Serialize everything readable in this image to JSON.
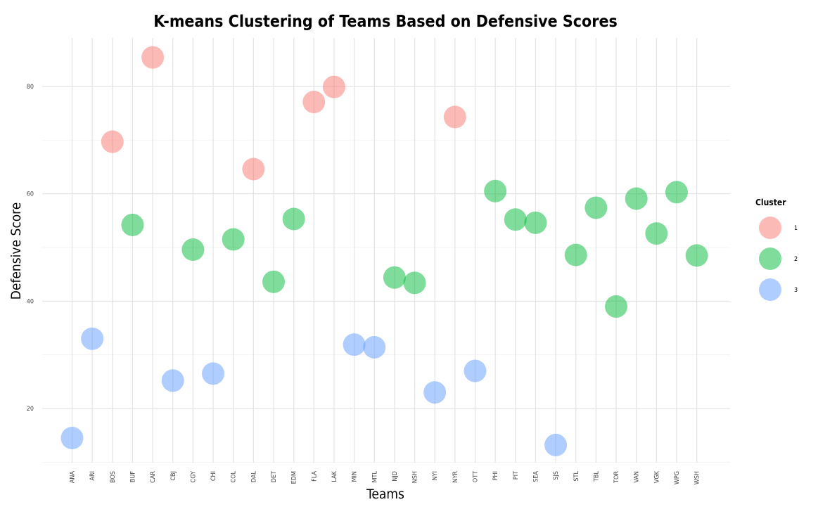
{
  "chart_data": {
    "type": "scatter",
    "title": "K-means Clustering of Teams Based on Defensive Scores",
    "xlabel": "Teams",
    "ylabel": "Defensive Score",
    "categories": [
      "ANA",
      "ARI",
      "BOS",
      "BUF",
      "CAR",
      "CBJ",
      "CGY",
      "CHI",
      "COL",
      "DAL",
      "DET",
      "EDM",
      "FLA",
      "LAK",
      "MIN",
      "MTL",
      "NJD",
      "NSH",
      "NYI",
      "NYR",
      "OTT",
      "PHI",
      "PIT",
      "SEA",
      "SJS",
      "STL",
      "TBL",
      "TOR",
      "VAN",
      "VGK",
      "WPG",
      "WSH"
    ],
    "ylim": [
      10,
      88
    ],
    "yticks": [
      20,
      40,
      60,
      80
    ],
    "grid": true,
    "legend": {
      "title": "Cluster",
      "position": "right",
      "entries": [
        {
          "label": "1",
          "color": "#F8766D"
        },
        {
          "label": "2",
          "color": "#00BA38"
        },
        {
          "label": "3",
          "color": "#619CFF"
        }
      ]
    },
    "points": [
      {
        "team": "ANA",
        "y": 14.5,
        "cluster": "3"
      },
      {
        "team": "ARI",
        "y": 33.0,
        "cluster": "3"
      },
      {
        "team": "BOS",
        "y": 69.7,
        "cluster": "1"
      },
      {
        "team": "BUF",
        "y": 54.2,
        "cluster": "2"
      },
      {
        "team": "CAR",
        "y": 85.4,
        "cluster": "1"
      },
      {
        "team": "CBJ",
        "y": 25.2,
        "cluster": "3"
      },
      {
        "team": "CGY",
        "y": 49.6,
        "cluster": "2"
      },
      {
        "team": "CHI",
        "y": 26.5,
        "cluster": "3"
      },
      {
        "team": "COL",
        "y": 51.5,
        "cluster": "2"
      },
      {
        "team": "DAL",
        "y": 64.6,
        "cluster": "1"
      },
      {
        "team": "DET",
        "y": 43.6,
        "cluster": "2"
      },
      {
        "team": "EDM",
        "y": 55.3,
        "cluster": "2"
      },
      {
        "team": "FLA",
        "y": 77.1,
        "cluster": "1"
      },
      {
        "team": "LAK",
        "y": 79.9,
        "cluster": "1"
      },
      {
        "team": "MIN",
        "y": 31.9,
        "cluster": "3"
      },
      {
        "team": "MTL",
        "y": 31.4,
        "cluster": "3"
      },
      {
        "team": "NJD",
        "y": 44.4,
        "cluster": "2"
      },
      {
        "team": "NSH",
        "y": 43.4,
        "cluster": "2"
      },
      {
        "team": "NYI",
        "y": 23.0,
        "cluster": "3"
      },
      {
        "team": "NYR",
        "y": 74.3,
        "cluster": "1"
      },
      {
        "team": "OTT",
        "y": 27.0,
        "cluster": "3"
      },
      {
        "team": "PHI",
        "y": 60.5,
        "cluster": "2"
      },
      {
        "team": "PIT",
        "y": 55.2,
        "cluster": "2"
      },
      {
        "team": "SEA",
        "y": 54.6,
        "cluster": "2"
      },
      {
        "team": "SJS",
        "y": 13.2,
        "cluster": "3"
      },
      {
        "team": "STL",
        "y": 48.6,
        "cluster": "2"
      },
      {
        "team": "TBL",
        "y": 57.4,
        "cluster": "2"
      },
      {
        "team": "TOR",
        "y": 39.0,
        "cluster": "2"
      },
      {
        "team": "VAN",
        "y": 59.1,
        "cluster": "2"
      },
      {
        "team": "VGK",
        "y": 52.6,
        "cluster": "2"
      },
      {
        "team": "WPG",
        "y": 60.3,
        "cluster": "2"
      },
      {
        "team": "WSH",
        "y": 48.5,
        "cluster": "2"
      }
    ]
  }
}
